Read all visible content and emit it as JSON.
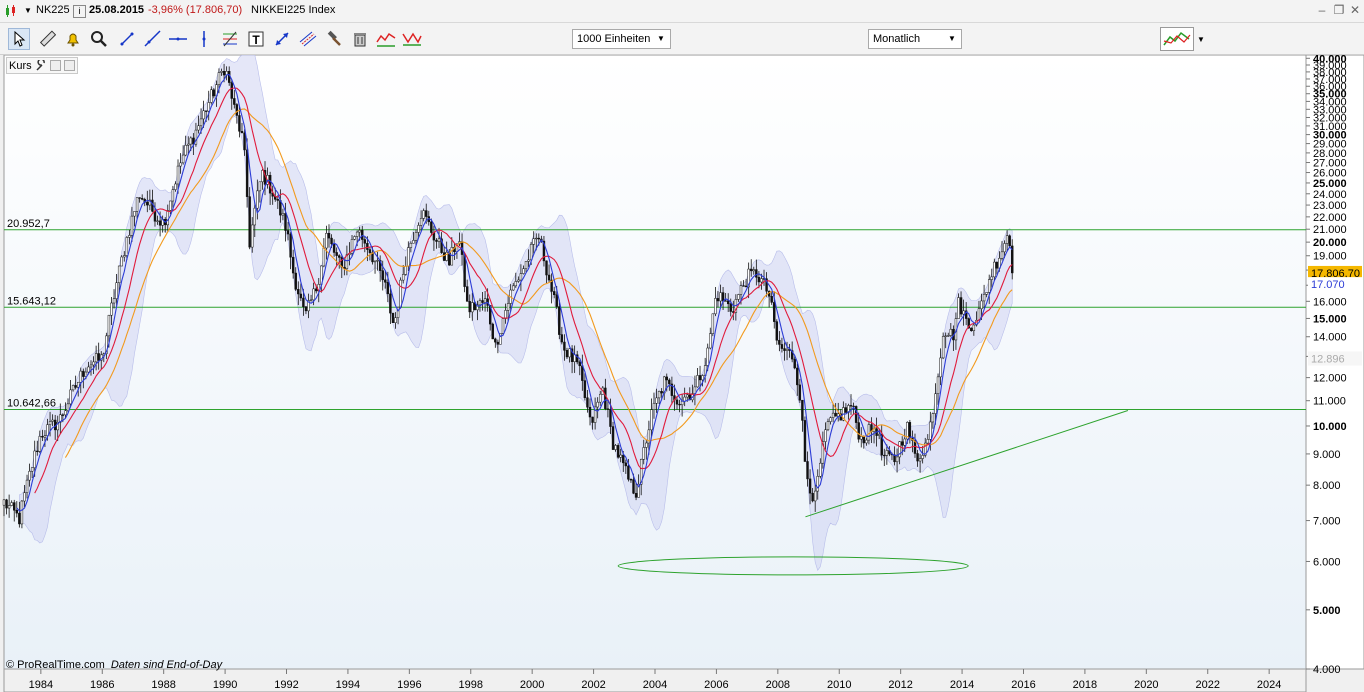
{
  "window": {
    "symbol": "NK225",
    "date": "25.08.2015",
    "change": "-3,96% (17.806,70)",
    "name": "NIKKEI225 Index"
  },
  "toolbar": {
    "units_select": "1000 Einheiten",
    "period_select": "Monatlich",
    "tools": [
      "pointer-icon",
      "ruler-icon",
      "alarm-bell-icon",
      "zoom-icon",
      "line-draw-icon",
      "ray-draw-icon",
      "horizontal-line-icon",
      "vertical-line-icon",
      "fibonacci-icon",
      "text-icon",
      "arrows-icon",
      "parallel-lines-icon",
      "hammer-icon",
      "trash-icon",
      "chart-templates-icon",
      "wave-icon"
    ]
  },
  "panel": {
    "label": "Kurs"
  },
  "footer": {
    "copyright": "© ProRealTime.com",
    "note": "Daten sind End-of-Day"
  },
  "colors": {
    "candle_up": "#ffffff",
    "candle_down": "#111111",
    "wick": "#111111",
    "ma_fast": "#2c3cd6",
    "ma_mid": "#e01b3c",
    "ma_slow": "#f29a1e",
    "band_fill": "#cfd3f3",
    "hline": "#2ea32e",
    "trend": "#2ea32e",
    "price_tag": "#f5b800",
    "chart_bg_top": "#ffffff",
    "chart_bg_bottom": "#e9f1f8"
  },
  "chart_data": {
    "type": "line",
    "scale": "log",
    "ylim": [
      4000,
      40500
    ],
    "xlim": [
      1982.8,
      2025.2
    ],
    "x_ticks": [
      1984,
      1986,
      1988,
      1990,
      1992,
      1994,
      1996,
      1998,
      2000,
      2002,
      2004,
      2006,
      2008,
      2010,
      2012,
      2014,
      2016,
      2018,
      2020,
      2022,
      2024
    ],
    "y_ticks": [
      4000,
      5000,
      6000,
      7000,
      8000,
      9000,
      10000,
      11000,
      12000,
      13000,
      14000,
      15000,
      16000,
      17000,
      18000,
      19000,
      20000,
      21000,
      22000,
      23000,
      24000,
      25000,
      26000,
      27000,
      28000,
      29000,
      30000,
      31000,
      32000,
      33000,
      34000,
      35000,
      36000,
      37000,
      38000,
      39000,
      40000
    ],
    "y_tick_labels": [
      "4.000",
      "5.000",
      "6.000",
      "7.000",
      "8.000",
      "9.000",
      "10.000",
      "11.000",
      "12.000",
      "13.000",
      "14.000",
      "15.000",
      "16.000",
      "17.000",
      "18.000",
      "19.000",
      "20.000",
      "21.000",
      "22.000",
      "23.000",
      "24.000",
      "25.000",
      "26.000",
      "27.000",
      "28.000",
      "29.000",
      "30.000",
      "31.000",
      "32.000",
      "33.000",
      "34.000",
      "35.000",
      "36.000",
      "37.000",
      "38.000",
      "39.000",
      "40.000"
    ],
    "y_bold_labels": [
      "5.000",
      "10.000",
      "15.000",
      "20.000",
      "25.000",
      "30.000",
      "35.000",
      "40.000"
    ],
    "price_anchors": [
      [
        1982.8,
        7500
      ],
      [
        1983.3,
        7050
      ],
      [
        1984.0,
        9700
      ],
      [
        1984.6,
        10200
      ],
      [
        1985.5,
        12600
      ],
      [
        1986.0,
        12900
      ],
      [
        1986.4,
        16500
      ],
      [
        1987.2,
        24000
      ],
      [
        1987.8,
        22000
      ],
      [
        1988.0,
        21500
      ],
      [
        1988.6,
        27500
      ],
      [
        1989.0,
        30000
      ],
      [
        1989.6,
        35000
      ],
      [
        1989.99,
        38915
      ],
      [
        1990.3,
        33000
      ],
      [
        1990.6,
        29000
      ],
      [
        1990.8,
        20000
      ],
      [
        1991.2,
        26000
      ],
      [
        1991.5,
        24500
      ],
      [
        1992.0,
        21000
      ],
      [
        1992.2,
        18000
      ],
      [
        1992.6,
        15000
      ],
      [
        1993.0,
        17000
      ],
      [
        1993.3,
        20500
      ],
      [
        1993.8,
        18000
      ],
      [
        1994.3,
        21000
      ],
      [
        1994.7,
        19500
      ],
      [
        1995.2,
        17000
      ],
      [
        1995.5,
        14500
      ],
      [
        1995.9,
        19000
      ],
      [
        1996.4,
        22500
      ],
      [
        1996.9,
        20000
      ],
      [
        1997.3,
        18500
      ],
      [
        1997.6,
        20500
      ],
      [
        1997.9,
        15500
      ],
      [
        1998.5,
        16000
      ],
      [
        1998.8,
        13500
      ],
      [
        1999.3,
        16500
      ],
      [
        1999.8,
        18500
      ],
      [
        2000.2,
        20500
      ],
      [
        2000.6,
        17000
      ],
      [
        2001.0,
        13500
      ],
      [
        2001.5,
        12500
      ],
      [
        2001.9,
        10000
      ],
      [
        2002.3,
        11500
      ],
      [
        2002.6,
        9500
      ],
      [
        2003.2,
        8000
      ],
      [
        2003.4,
        7800
      ],
      [
        2003.9,
        10500
      ],
      [
        2004.3,
        11800
      ],
      [
        2004.8,
        11000
      ],
      [
        2005.3,
        11500
      ],
      [
        2005.7,
        13000
      ],
      [
        2006.0,
        16500
      ],
      [
        2006.5,
        15500
      ],
      [
        2007.0,
        17500
      ],
      [
        2007.3,
        17800
      ],
      [
        2007.7,
        16500
      ],
      [
        2008.0,
        13500
      ],
      [
        2008.5,
        13000
      ],
      [
        2008.7,
        11500
      ],
      [
        2008.9,
        8500
      ],
      [
        2009.2,
        7500
      ],
      [
        2009.6,
        10000
      ],
      [
        2010.1,
        10500
      ],
      [
        2010.4,
        10800
      ],
      [
        2010.7,
        9500
      ],
      [
        2011.2,
        10000
      ],
      [
        2011.4,
        8900
      ],
      [
        2011.8,
        8800
      ],
      [
        2012.2,
        10000
      ],
      [
        2012.5,
        8800
      ],
      [
        2012.9,
        9500
      ],
      [
        2013.2,
        12000
      ],
      [
        2013.4,
        14500
      ],
      [
        2013.7,
        14000
      ],
      [
        2013.9,
        16000
      ],
      [
        2014.2,
        14500
      ],
      [
        2014.6,
        15500
      ],
      [
        2014.9,
        17500
      ],
      [
        2015.3,
        19500
      ],
      [
        2015.5,
        20800
      ],
      [
        2015.65,
        17806.7
      ]
    ],
    "horizontal_lines": [
      {
        "value": 20952.7,
        "label": "20.952,7"
      },
      {
        "value": 15643.12,
        "label": "15.643,12"
      },
      {
        "value": 10642.66,
        "label": "10.642,66"
      }
    ],
    "trendline": {
      "start": [
        2008.9,
        7100
      ],
      "end": [
        2019.4,
        10600
      ]
    },
    "ellipse": {
      "center_x": 2008.5,
      "rx_years": 5.7,
      "value": 5900
    },
    "last_price": {
      "value": 17806.7,
      "label": "17.806,70"
    },
    "ma_fast_last": {
      "value": 17070,
      "label": "17.070"
    },
    "ma_slow_last": {
      "value": 12896,
      "label": "12.896"
    },
    "series": [
      {
        "values": "moving-average-5"
      },
      {
        "values": "moving-average-12"
      },
      {
        "values": "moving-average-24"
      }
    ]
  }
}
